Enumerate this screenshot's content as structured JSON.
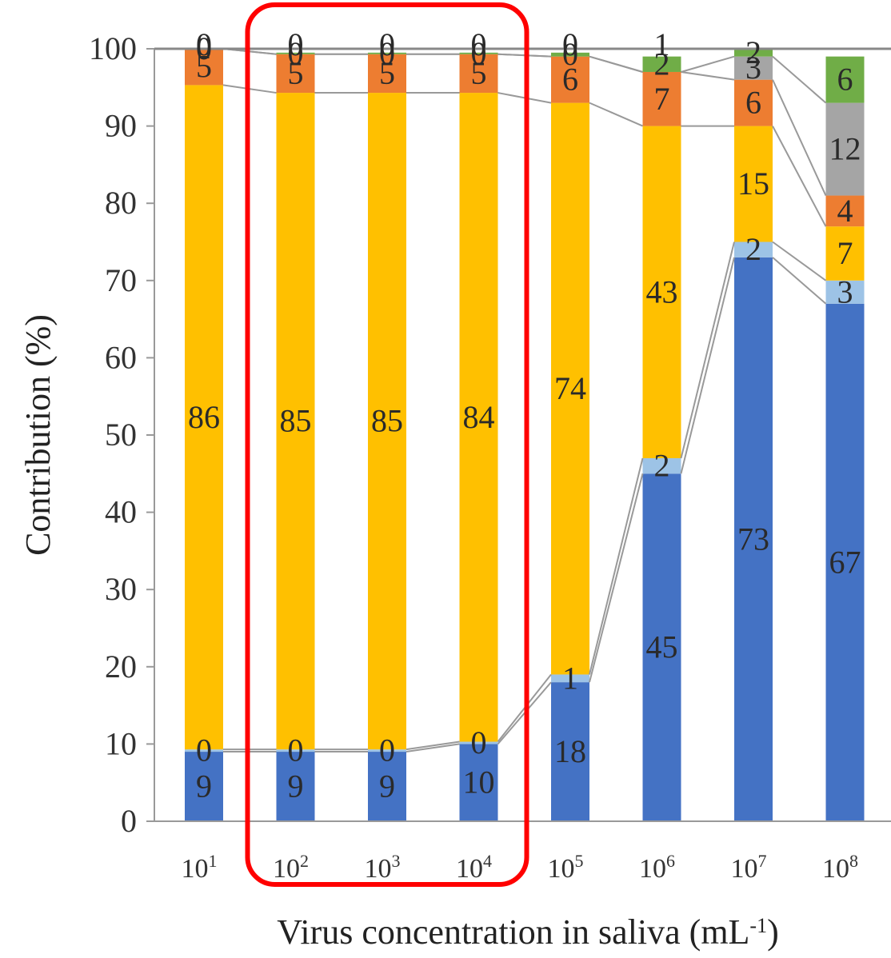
{
  "chart_data": {
    "type": "bar",
    "stacked": true,
    "title": "",
    "xlabel": "Virus concentration in saliva (mL",
    "xlabel_exponent": "-1",
    "xlabel_close": ")",
    "ylabel": "Contribution (%)",
    "ylim": [
      0,
      100
    ],
    "yticks": [
      "0",
      "10",
      "20",
      "30",
      "40",
      "50",
      "60",
      "70",
      "80",
      "90",
      "100"
    ],
    "categories": [
      {
        "base": "10",
        "exp": "1"
      },
      {
        "base": "10",
        "exp": "2"
      },
      {
        "base": "10",
        "exp": "3"
      },
      {
        "base": "10",
        "exp": "4"
      },
      {
        "base": "10",
        "exp": "5"
      },
      {
        "base": "10",
        "exp": "6"
      },
      {
        "base": "10",
        "exp": "7"
      },
      {
        "base": "10",
        "exp": "8"
      }
    ],
    "series": [
      {
        "color": "#4472c4",
        "values": [
          9,
          9,
          9,
          10,
          18,
          45,
          73,
          67
        ],
        "labels": [
          "9",
          "9",
          "9",
          "10",
          "18",
          "45",
          "73",
          "67"
        ]
      },
      {
        "color": "#9dc3e6",
        "values": [
          0.3,
          0.3,
          0.3,
          0.3,
          1,
          2,
          2,
          3
        ],
        "labels": [
          "0",
          "0",
          "0",
          "0",
          "1",
          "2",
          "2",
          "3"
        ]
      },
      {
        "color": "#ffc000",
        "values": [
          86,
          85,
          85,
          84,
          74,
          43,
          15,
          7
        ],
        "labels": [
          "86",
          "85",
          "85",
          "84",
          "74",
          "43",
          "15",
          "7"
        ]
      },
      {
        "color": "#ed7d31",
        "values": [
          5,
          5,
          5,
          5,
          6,
          7,
          6,
          4
        ],
        "labels": [
          "5",
          "5",
          "5",
          "5",
          "6",
          "7",
          "6",
          "4"
        ]
      },
      {
        "color": "#a5a5a5",
        "values": [
          0,
          0,
          0,
          0,
          0,
          0,
          3,
          12
        ],
        "labels": [
          "",
          "",
          "",
          "",
          "",
          "",
          "3",
          "12"
        ]
      },
      {
        "color": "#70ad47",
        "values": [
          0.2,
          0.2,
          0.2,
          0.2,
          0.5,
          2,
          2,
          6
        ],
        "labels": [
          "0",
          "0",
          "0",
          "0",
          "0",
          "2",
          "2",
          "6"
        ]
      }
    ],
    "top_labels": [
      "0",
      "0",
      "0",
      "0",
      "0",
      "1",
      "",
      ""
    ],
    "grid": false,
    "highlight": {
      "from_category": 1,
      "to_category": 3,
      "color": "#ff0000"
    }
  }
}
